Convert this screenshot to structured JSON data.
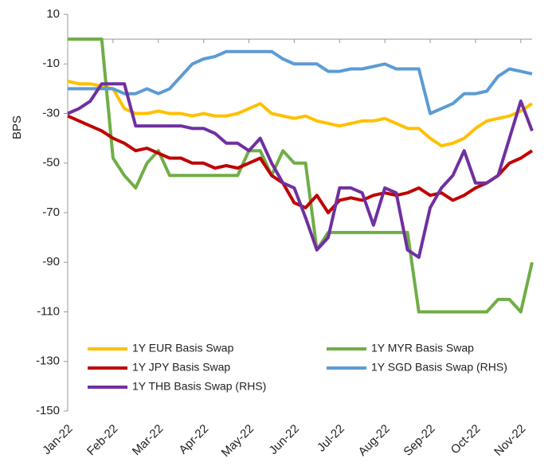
{
  "chart_data": {
    "type": "line",
    "ylabel": "BPS",
    "x": [
      0,
      0.25,
      0.5,
      0.75,
      1,
      1.25,
      1.5,
      1.75,
      2,
      2.25,
      2.5,
      2.75,
      3,
      3.25,
      3.5,
      3.75,
      4,
      4.25,
      4.5,
      4.75,
      5,
      5.25,
      5.5,
      5.75,
      6,
      6.25,
      6.5,
      6.75,
      7,
      7.25,
      7.5,
      7.75,
      8,
      8.25,
      8.5,
      8.75,
      9,
      9.25,
      9.5,
      9.75,
      10,
      10.25
    ],
    "xlim": [
      0,
      10.25
    ],
    "xticks": [
      {
        "value": 0,
        "label": "Jan-22"
      },
      {
        "value": 1,
        "label": "Feb-22"
      },
      {
        "value": 2,
        "label": "Mar-22"
      },
      {
        "value": 3,
        "label": "Apr-22"
      },
      {
        "value": 4,
        "label": "May-22"
      },
      {
        "value": 5,
        "label": "Jun-22"
      },
      {
        "value": 6,
        "label": "Jul-22"
      },
      {
        "value": 7,
        "label": "Aug-22"
      },
      {
        "value": 8,
        "label": "Sep-22"
      },
      {
        "value": 9,
        "label": "Oct-22"
      },
      {
        "value": 10,
        "label": "Nov-22"
      }
    ],
    "ylim": [
      -150,
      10
    ],
    "yticks": [
      10,
      -10,
      -30,
      -50,
      -70,
      -90,
      -110,
      -130,
      -150
    ],
    "grid": false,
    "legend": "lower left",
    "series": [
      {
        "name": "1Y EUR Basis Swap",
        "color": "#ffc000",
        "values": [
          -17,
          -18,
          -18,
          -19,
          -20,
          -28,
          -30,
          -30,
          -29,
          -30,
          -30,
          -31,
          -30,
          -31,
          -31,
          -30,
          -28,
          -26,
          -30,
          -31,
          -32,
          -31,
          -33,
          -34,
          -35,
          -34,
          -33,
          -33,
          -32,
          -34,
          -36,
          -36,
          -40,
          -43,
          -42,
          -40,
          -36,
          -33,
          -32,
          -31,
          -29,
          -26
        ]
      },
      {
        "name": "1Y MYR Basis Swap",
        "color": "#70ad47",
        "values": [
          0,
          0,
          0,
          0,
          -48,
          -55,
          -60,
          -50,
          -45,
          -55,
          -55,
          -55,
          -55,
          -55,
          -55,
          -55,
          -45,
          -45,
          -55,
          -45,
          -50,
          -50,
          -85,
          -78,
          -78,
          -78,
          -78,
          -78,
          -78,
          -78,
          -78,
          -110,
          -110,
          -110,
          -110,
          -110,
          -110,
          -110,
          -105,
          -105,
          -110,
          -90
        ]
      },
      {
        "name": "1Y JPY Basis Swap",
        "color": "#c00000",
        "values": [
          -31,
          -33,
          -35,
          -37,
          -40,
          -42,
          -45,
          -44,
          -46,
          -48,
          -48,
          -50,
          -50,
          -52,
          -51,
          -52,
          -50,
          -48,
          -55,
          -58,
          -66,
          -68,
          -63,
          -70,
          -65,
          -64,
          -65,
          -63,
          -62,
          -63,
          -62,
          -60,
          -63,
          -62,
          -65,
          -63,
          -60,
          -58,
          -55,
          -50,
          -48,
          -45
        ]
      },
      {
        "name": "1Y SGD Basis Swap (RHS)",
        "color": "#5b9bd5",
        "values": [
          -20,
          -20,
          -20,
          -20,
          -20,
          -22,
          -22,
          -20,
          -22,
          -20,
          -15,
          -10,
          -8,
          -7,
          -5,
          -5,
          -5,
          -5,
          -5,
          -8,
          -10,
          -10,
          -10,
          -13,
          -13,
          -12,
          -12,
          -11,
          -10,
          -12,
          -12,
          -12,
          -30,
          -28,
          -26,
          -22,
          -22,
          -21,
          -15,
          -12,
          -13,
          -14
        ]
      },
      {
        "name": "1Y THB Basis Swap (RHS)",
        "color": "#7030a0",
        "values": [
          -30,
          -28,
          -25,
          -18,
          -18,
          -18,
          -35,
          -35,
          -35,
          -35,
          -35,
          -36,
          -36,
          -38,
          -42,
          -42,
          -45,
          -40,
          -50,
          -58,
          -60,
          -72,
          -85,
          -80,
          -60,
          -60,
          -62,
          -75,
          -60,
          -62,
          -85,
          -88,
          -68,
          -60,
          -55,
          -45,
          -58,
          -58,
          -55,
          -40,
          -25,
          -37
        ]
      }
    ]
  }
}
